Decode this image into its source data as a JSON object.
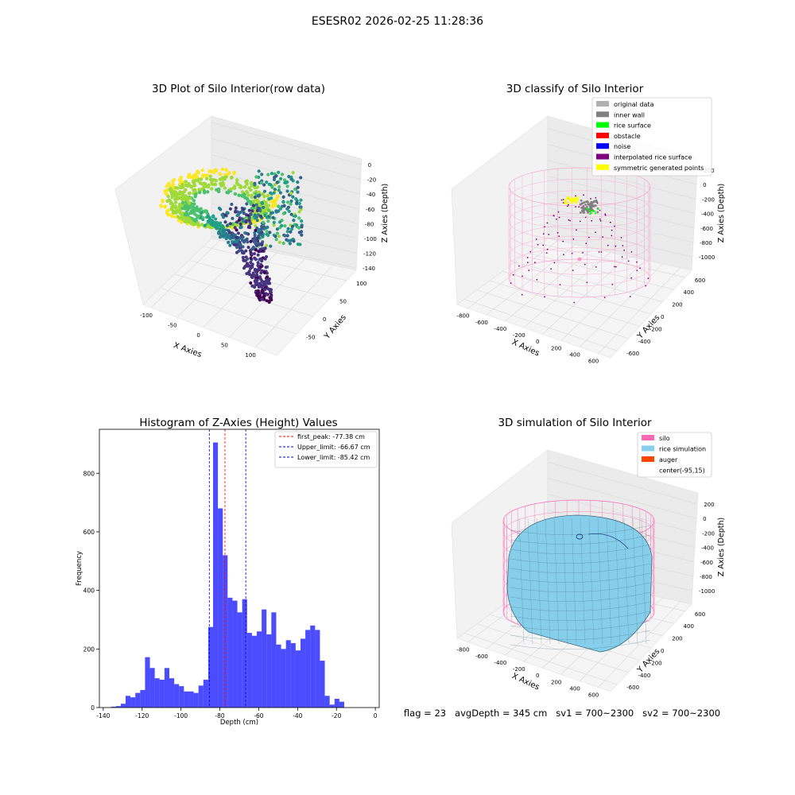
{
  "suptitle": "ESESR02 2026-02-25 11:28:36",
  "footer": "flag = 23   avgDepth = 345 cm   sv1 = 700~2300   sv2 = 700~2300",
  "chart_data": [
    {
      "type": "scatter",
      "title": "3D Plot of Silo Interior(row data)",
      "xlabel": "X Axies",
      "ylabel": "Y Axies",
      "zlabel": "Z Axies (Depth)",
      "x_ticks": [
        "-100",
        "-50",
        "0",
        "50",
        "100"
      ],
      "y_ticks": [
        "-50",
        "0",
        "50",
        "100"
      ],
      "z_ticks": [
        "0",
        "-20",
        "-40",
        "-60",
        "-80",
        "-100",
        "-120",
        "-140"
      ],
      "colormap": "viridis"
    },
    {
      "type": "scatter",
      "title": "3D classify of Silo Interior",
      "xlabel": "X Axies",
      "ylabel": "Y Axies",
      "zlabel": "Z Axies (Depth)",
      "x_ticks": [
        "-800",
        "-600",
        "-400",
        "-200",
        "0",
        "200",
        "400",
        "600"
      ],
      "y_ticks": [
        "-600",
        "-400",
        "-200",
        "0",
        "200",
        "400",
        "600"
      ],
      "z_ticks": [
        "200",
        "0",
        "-200",
        "-400",
        "-600",
        "-800",
        "-1000"
      ],
      "legend": [
        {
          "label": "original data",
          "color": "#b0b0b0"
        },
        {
          "label": "inner wall",
          "color": "#808080"
        },
        {
          "label": "rice surface",
          "color": "#00ff00"
        },
        {
          "label": "obstacle",
          "color": "#ff0000"
        },
        {
          "label": "noise",
          "color": "#0000ff"
        },
        {
          "label": "interpolated rice surface",
          "color": "#800080"
        },
        {
          "label": "symmetric generated points",
          "color": "#ffff00"
        }
      ]
    },
    {
      "type": "bar",
      "title": "Histogram of Z-Axies (Height) Values",
      "xlabel": "Depth (cm)",
      "ylabel": "Frequency",
      "xlim": [
        -142,
        2
      ],
      "ylim": [
        0,
        950
      ],
      "x_ticks": [
        -140,
        -120,
        -100,
        -80,
        -60,
        -40,
        -20,
        0
      ],
      "y_ticks": [
        0,
        200,
        400,
        600,
        800
      ],
      "bar_color": "#0000ff",
      "bin_edges_start": -136,
      "bin_width": 2.5,
      "values": [
        3,
        5,
        13,
        40,
        35,
        50,
        60,
        172,
        135,
        100,
        95,
        135,
        100,
        80,
        73,
        55,
        55,
        50,
        75,
        95,
        275,
        905,
        680,
        520,
        375,
        365,
        325,
        370,
        255,
        245,
        260,
        335,
        250,
        325,
        215,
        200,
        230,
        220,
        195,
        235,
        265,
        280,
        265,
        160,
        40,
        10,
        30,
        20
      ],
      "lines": [
        {
          "label": "first_peak: -77.38 cm",
          "x": -77.38,
          "color": "#ff0000"
        },
        {
          "label": "Upper_limit: -66.67 cm",
          "x": -66.67,
          "color": "#0000cc"
        },
        {
          "label": "Lower_limit: -85.42 cm",
          "x": -85.42,
          "color": "#0000cc"
        }
      ]
    },
    {
      "type": "scatter",
      "title": "3D simulation of Silo Interior",
      "xlabel": "X Axies",
      "ylabel": "Y Axies",
      "zlabel": "Z Axies (Depth)",
      "x_ticks": [
        "-800",
        "-600",
        "-400",
        "-200",
        "0",
        "200",
        "400",
        "600"
      ],
      "y_ticks": [
        "-600",
        "-400",
        "-200",
        "0",
        "200",
        "400",
        "600"
      ],
      "z_ticks": [
        "200",
        "0",
        "-200",
        "-400",
        "-600",
        "-800",
        "-1000"
      ],
      "legend": [
        {
          "label": "silo",
          "color": "#ff69b4"
        },
        {
          "label": "rice simulation",
          "color": "#87ceeb"
        },
        {
          "label": "auger",
          "color": "#ff4500"
        },
        {
          "label": "center(-95,15)",
          "color": ""
        }
      ]
    }
  ]
}
